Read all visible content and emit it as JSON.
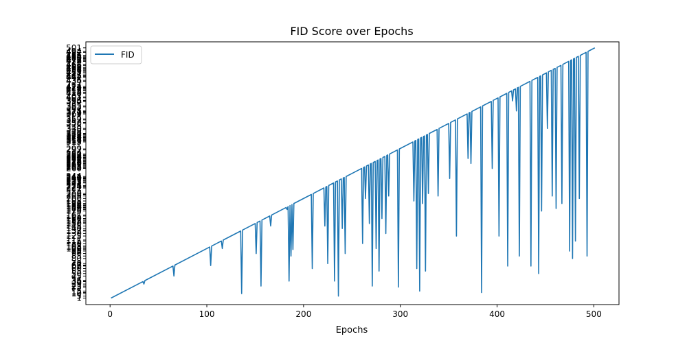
{
  "chart_data": {
    "type": "line",
    "title": "FID Score over Epochs",
    "xlabel": "Epochs",
    "ylabel": "",
    "xlim": [
      -25,
      526
    ],
    "xticks": [
      0,
      100,
      200,
      300,
      400,
      500
    ],
    "ylim": [
      -12,
      513
    ],
    "grid": false,
    "legend": {
      "position": "top-left",
      "entries": [
        "FID"
      ]
    },
    "series": [
      {
        "name": "FID",
        "color": "#1f77b4",
        "x": [
          1,
          34,
          35,
          36,
          65,
          66,
          67,
          103,
          104,
          105,
          115,
          116,
          117,
          135,
          136,
          137,
          150,
          151,
          152,
          155,
          156,
          157,
          165,
          166,
          167,
          182,
          183,
          184,
          185,
          186,
          187,
          188,
          189,
          190,
          208,
          209,
          210,
          221,
          222,
          223,
          224,
          225,
          226,
          231,
          232,
          233,
          235,
          236,
          237,
          239,
          240,
          241,
          242,
          243,
          244,
          260,
          261,
          262,
          263,
          264,
          265,
          267,
          268,
          269,
          270,
          271,
          272,
          274,
          275,
          276,
          277,
          278,
          279,
          280,
          281,
          282,
          284,
          285,
          286,
          287,
          288,
          289,
          297,
          298,
          299,
          313,
          314,
          315,
          316,
          317,
          318,
          319,
          320,
          321,
          322,
          323,
          324,
          325,
          326,
          327,
          328,
          329,
          330,
          338,
          339,
          340,
          350,
          351,
          352,
          357,
          358,
          359,
          369,
          370,
          371,
          372,
          373,
          374,
          383,
          384,
          385,
          394,
          395,
          396,
          401,
          402,
          403,
          410,
          411,
          412,
          415,
          416,
          417,
          419,
          420,
          421,
          422,
          423,
          424,
          434,
          435,
          436,
          442,
          443,
          444,
          445,
          446,
          447,
          451,
          452,
          453,
          456,
          457,
          458,
          460,
          461,
          462,
          466,
          467,
          468,
          474,
          475,
          476,
          477,
          478,
          479,
          480,
          481,
          482,
          484,
          485,
          486,
          492,
          493,
          494,
          501
        ],
        "y": [
          1,
          34,
          29,
          36,
          65,
          45,
          67,
          103,
          66,
          105,
          115,
          100,
          117,
          135,
          10,
          137,
          150,
          90,
          152,
          155,
          25,
          157,
          165,
          145,
          167,
          182,
          178,
          184,
          35,
          186,
          85,
          188,
          98,
          190,
          208,
          60,
          210,
          221,
          145,
          223,
          224,
          70,
          226,
          231,
          35,
          233,
          235,
          5,
          237,
          239,
          140,
          241,
          242,
          90,
          244,
          260,
          110,
          262,
          263,
          200,
          265,
          267,
          150,
          269,
          270,
          25,
          272,
          274,
          100,
          276,
          277,
          55,
          279,
          280,
          160,
          282,
          284,
          130,
          286,
          287,
          205,
          289,
          297,
          23,
          299,
          313,
          195,
          315,
          316,
          60,
          318,
          319,
          15,
          321,
          322,
          190,
          324,
          325,
          55,
          327,
          328,
          210,
          330,
          338,
          205,
          340,
          350,
          240,
          352,
          357,
          125,
          359,
          369,
          280,
          371,
          372,
          270,
          374,
          383,
          12,
          385,
          394,
          260,
          396,
          401,
          125,
          403,
          410,
          65,
          412,
          415,
          395,
          417,
          419,
          375,
          421,
          422,
          85,
          424,
          434,
          65,
          436,
          442,
          50,
          444,
          445,
          175,
          447,
          451,
          340,
          453,
          456,
          205,
          458,
          460,
          180,
          462,
          466,
          190,
          468,
          474,
          95,
          476,
          477,
          80,
          479,
          480,
          115,
          482,
          484,
          200,
          486,
          492,
          85,
          494,
          501
        ]
      }
    ]
  }
}
